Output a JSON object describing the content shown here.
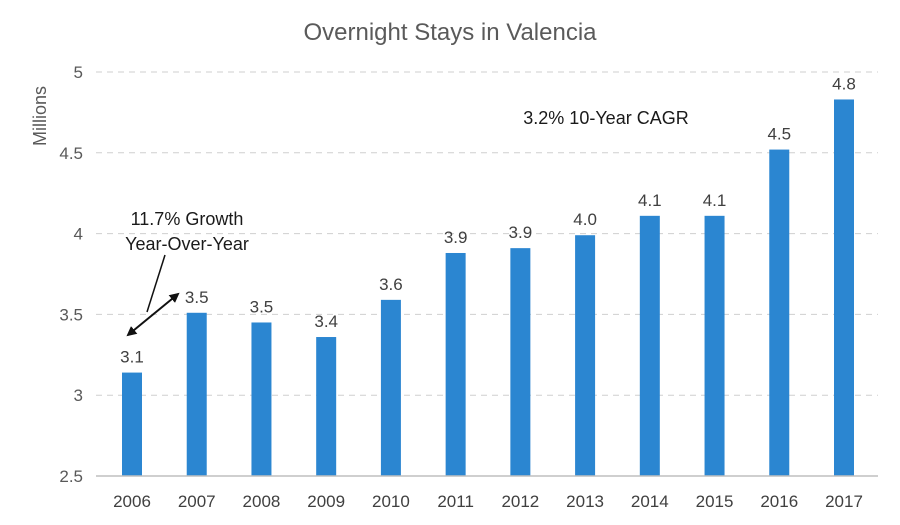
{
  "chart_data": {
    "type": "bar",
    "title": "Overnight Stays in Valencia",
    "ylabel": "Millions",
    "xlabel": "",
    "ylim": [
      2.5,
      5
    ],
    "yticks": [
      2.5,
      3,
      3.5,
      4,
      4.5,
      5
    ],
    "ytick_labels": [
      "2.5",
      "3",
      "3.5",
      "4",
      "4.5",
      "5"
    ],
    "grid": true,
    "legend": "none",
    "bar_color": "#2b86d1",
    "categories": [
      "2006",
      "2007",
      "2008",
      "2009",
      "2010",
      "2011",
      "2012",
      "2013",
      "2014",
      "2015",
      "2016",
      "2017"
    ],
    "values": [
      3.14,
      3.51,
      3.45,
      3.36,
      3.59,
      3.88,
      3.91,
      3.99,
      4.11,
      4.11,
      4.52,
      4.83
    ],
    "data_labels": [
      "3.1",
      "3.5",
      "3.5",
      "3.4",
      "3.6",
      "3.9",
      "3.9",
      "4.0",
      "4.1",
      "4.1",
      "4.5",
      "4.8"
    ],
    "annotations": [
      {
        "text": "3.2% 10-Year CAGR"
      },
      {
        "lines": [
          "11.7% Growth",
          "Year-Over-Year"
        ],
        "arrow_between": [
          "2006",
          "2007"
        ]
      }
    ]
  }
}
